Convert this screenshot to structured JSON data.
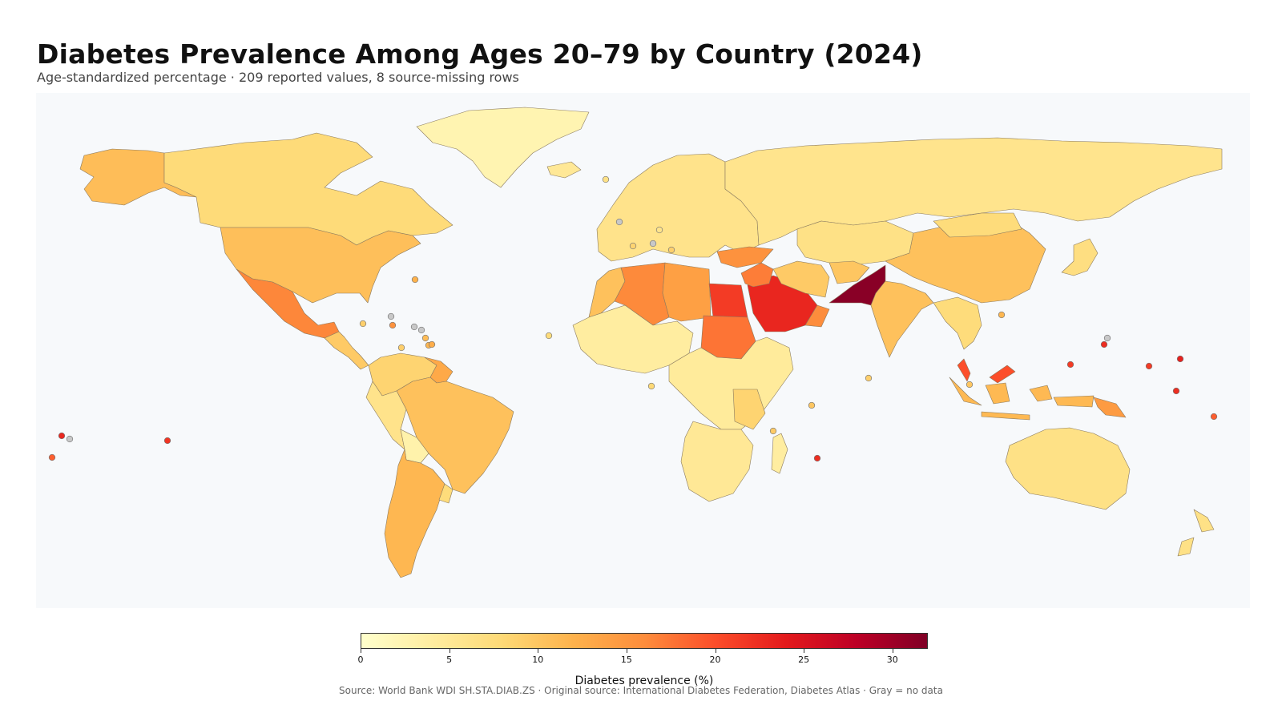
{
  "header": {
    "title": "Diabetes Prevalence Among Ages 20–79 by Country (2024)",
    "subtitle": "Age-standardized percentage · 209 reported values, 8 source-missing rows"
  },
  "colorbar": {
    "label": "Diabetes prevalence (%)",
    "min": 0,
    "max": 32,
    "ticks": [
      "0",
      "5",
      "10",
      "15",
      "20",
      "25",
      "30"
    ],
    "colors": [
      "#ffffcc",
      "#ffeda0",
      "#fed976",
      "#feb24c",
      "#fd8d3c",
      "#fc4e2a",
      "#e31a1c",
      "#bd0026",
      "#800026"
    ]
  },
  "footer": {
    "source": "Source: World Bank WDI SH.STA.DIAB.ZS · Original source: International Diabetes Federation, Diabetes Atlas · Gray = no data"
  },
  "map": {
    "ocean_color": "#f7f9fb",
    "no_data_color": "#c8c8c8",
    "regions": [
      {
        "name": "Alaska",
        "value": 10.9
      },
      {
        "name": "Canada",
        "value": 7.7
      },
      {
        "name": "Greenland",
        "value": 2.5
      },
      {
        "name": "United States",
        "value": 10.7
      },
      {
        "name": "Mexico",
        "value": 16.4
      },
      {
        "name": "Central America",
        "value": 9.5
      },
      {
        "name": "Colombia / Venezuela",
        "value": 8.5
      },
      {
        "name": "Guyana",
        "value": 13.0
      },
      {
        "name": "Brazil",
        "value": 10.5
      },
      {
        "name": "Peru",
        "value": 6.0
      },
      {
        "name": "Bolivia",
        "value": 3.0
      },
      {
        "name": "Argentina / Chile",
        "value": 11.5
      },
      {
        "name": "Uruguay",
        "value": 7.5
      },
      {
        "name": "Iceland",
        "value": 5.0
      },
      {
        "name": "Europe",
        "value": 6.0
      },
      {
        "name": "Russia",
        "value": 5.8
      },
      {
        "name": "Turkey",
        "value": 15.5
      },
      {
        "name": "Morocco",
        "value": 10.5
      },
      {
        "name": "Algeria",
        "value": 16.2
      },
      {
        "name": "Libya",
        "value": 14.0
      },
      {
        "name": "Egypt",
        "value": 21.5
      },
      {
        "name": "Sudan",
        "value": 17.6
      },
      {
        "name": "Saudi Arabia",
        "value": 23.1
      },
      {
        "name": "Iraq / Syria",
        "value": 17.0
      },
      {
        "name": "Oman",
        "value": 16.0
      },
      {
        "name": "Iran",
        "value": 9.5
      },
      {
        "name": "Central Asia",
        "value": 6.5
      },
      {
        "name": "Afghanistan",
        "value": 10.0
      },
      {
        "name": "Pakistan",
        "value": 31.4
      },
      {
        "name": "India",
        "value": 10.5
      },
      {
        "name": "China",
        "value": 10.5
      },
      {
        "name": "Mongolia",
        "value": 7.5
      },
      {
        "name": "Southeast Asia",
        "value": 7.5
      },
      {
        "name": "Malaysia",
        "value": 20.0
      },
      {
        "name": "Indonesia",
        "value": 11.3
      },
      {
        "name": "Papua New Guinea",
        "value": 14.5
      },
      {
        "name": "Japan / Korea",
        "value": 7.0
      },
      {
        "name": "West Africa",
        "value": 4.0
      },
      {
        "name": "Central / East Africa",
        "value": 4.5
      },
      {
        "name": "Tanzania / Kenya",
        "value": 8.5
      },
      {
        "name": "Southern Africa",
        "value": 5.0
      },
      {
        "name": "Madagascar",
        "value": 4.0
      },
      {
        "name": "Australia",
        "value": 6.5
      },
      {
        "name": "New Zealand",
        "value": 6.5
      }
    ],
    "islands": [
      {
        "name": "Samoa region",
        "value": 23.0
      },
      {
        "name": "Tonga",
        "value": 19.0
      },
      {
        "name": "Pacific island",
        "value": null
      },
      {
        "name": "Hawaii region",
        "value": 22.0
      },
      {
        "name": "Bermuda",
        "value": 12.0
      },
      {
        "name": "Caribbean island A",
        "value": null
      },
      {
        "name": "Caribbean island B",
        "value": 9.0
      },
      {
        "name": "Caribbean island C",
        "value": 15.5
      },
      {
        "name": "Caribbean island D",
        "value": null
      },
      {
        "name": "Caribbean island E",
        "value": null
      },
      {
        "name": "Caribbean island F",
        "value": 11.0
      },
      {
        "name": "Caribbean island G",
        "value": 11.5
      },
      {
        "name": "Caribbean island H",
        "value": 12.5
      },
      {
        "name": "Caribbean island I",
        "value": 9.0
      },
      {
        "name": "Cabo Verde",
        "value": 7.5
      },
      {
        "name": "Sao Tome",
        "value": 8.0
      },
      {
        "name": "Faroe Islands",
        "value": 6.5
      },
      {
        "name": "Channel island",
        "value": null
      },
      {
        "name": "Andorra",
        "value": 8.5
      },
      {
        "name": "Malta",
        "value": 9.0
      },
      {
        "name": "Monaco",
        "value": null
      },
      {
        "name": "Liechtenstein",
        "value": 6.0
      },
      {
        "name": "Comoros",
        "value": 9.5
      },
      {
        "name": "Seychelles",
        "value": 10.0
      },
      {
        "name": "Maldives",
        "value": 9.0
      },
      {
        "name": "Mauritius",
        "value": 22.5
      },
      {
        "name": "Brunei",
        "value": 11.5
      },
      {
        "name": "Guam region",
        "value": null
      },
      {
        "name": "Micronesia",
        "value": 22.5
      },
      {
        "name": "Palau",
        "value": 21.5
      },
      {
        "name": "Marshall Islands",
        "value": 23.5
      },
      {
        "name": "Nauru",
        "value": 21.5
      },
      {
        "name": "Kiribati",
        "value": 22.5
      },
      {
        "name": "Tuvalu",
        "value": 19.0
      },
      {
        "name": "Singapore",
        "value": 10.0
      }
    ]
  }
}
